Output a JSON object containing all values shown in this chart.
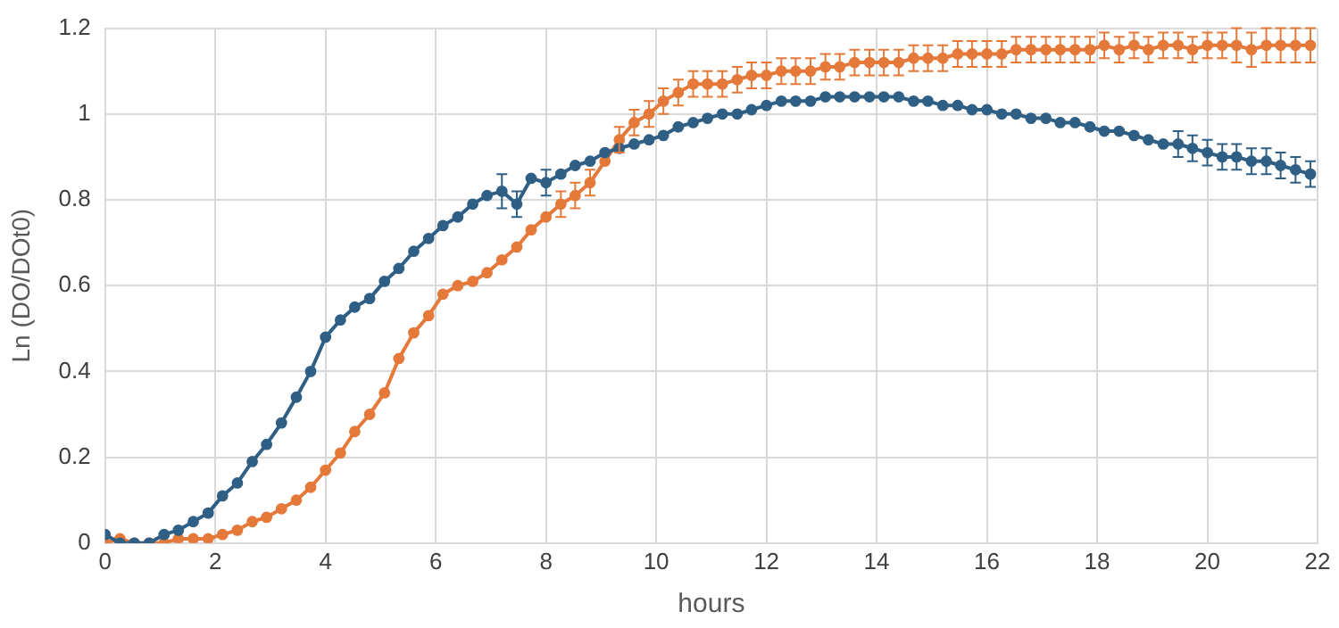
{
  "chart_data": {
    "type": "line",
    "xlabel": "hours",
    "ylabel": "Ln (DO/DOt0)",
    "x": [
      0,
      0.27,
      0.53,
      0.8,
      1.07,
      1.33,
      1.6,
      1.87,
      2.13,
      2.4,
      2.67,
      2.93,
      3.2,
      3.47,
      3.73,
      4,
      4.27,
      4.53,
      4.8,
      5.07,
      5.33,
      5.6,
      5.87,
      6.13,
      6.4,
      6.67,
      6.93,
      7.2,
      7.47,
      7.73,
      8,
      8.27,
      8.53,
      8.8,
      9.07,
      9.33,
      9.6,
      9.87,
      10.13,
      10.4,
      10.67,
      10.93,
      11.2,
      11.47,
      11.73,
      12,
      12.27,
      12.53,
      12.8,
      13.07,
      13.33,
      13.6,
      13.87,
      14.13,
      14.4,
      14.67,
      14.93,
      15.2,
      15.47,
      15.73,
      16,
      16.27,
      16.53,
      16.8,
      17.07,
      17.33,
      17.6,
      17.87,
      18.13,
      18.4,
      18.67,
      18.93,
      19.2,
      19.47,
      19.73,
      20,
      20.27,
      20.53,
      20.8,
      21.07,
      21.33,
      21.6,
      21.87
    ],
    "series": [
      {
        "color": "#2f5f85",
        "values": [
          0.02,
          0,
          0,
          0,
          0.02,
          0.03,
          0.05,
          0.07,
          0.11,
          0.14,
          0.19,
          0.23,
          0.28,
          0.34,
          0.4,
          0.48,
          0.52,
          0.55,
          0.57,
          0.61,
          0.64,
          0.68,
          0.71,
          0.74,
          0.76,
          0.79,
          0.81,
          0.82,
          0.79,
          0.85,
          0.84,
          0.86,
          0.88,
          0.89,
          0.91,
          0.92,
          0.93,
          0.94,
          0.95,
          0.97,
          0.98,
          0.99,
          1.0,
          1.0,
          1.01,
          1.02,
          1.03,
          1.03,
          1.03,
          1.04,
          1.04,
          1.04,
          1.04,
          1.04,
          1.04,
          1.03,
          1.03,
          1.02,
          1.02,
          1.01,
          1.01,
          1.0,
          1.0,
          0.99,
          0.99,
          0.98,
          0.98,
          0.97,
          0.96,
          0.96,
          0.95,
          0.94,
          0.93,
          0.93,
          0.92,
          0.91,
          0.9,
          0.9,
          0.89,
          0.89,
          0.88,
          0.87,
          0.86
        ],
        "errors": [
          null,
          null,
          null,
          null,
          null,
          null,
          null,
          null,
          null,
          null,
          null,
          null,
          null,
          null,
          null,
          null,
          null,
          null,
          null,
          null,
          null,
          null,
          null,
          null,
          null,
          null,
          null,
          0.04,
          0.03,
          null,
          0.03,
          null,
          null,
          null,
          null,
          null,
          null,
          null,
          null,
          null,
          null,
          null,
          null,
          null,
          null,
          null,
          null,
          null,
          null,
          null,
          null,
          null,
          null,
          null,
          null,
          null,
          null,
          null,
          null,
          null,
          null,
          null,
          null,
          null,
          null,
          null,
          null,
          null,
          null,
          null,
          null,
          null,
          null,
          0.03,
          0.03,
          0.03,
          0.03,
          0.03,
          0.03,
          0.03,
          0.03,
          0.03,
          0.03
        ]
      },
      {
        "color": "#e4793a",
        "values": [
          0,
          0.01,
          0,
          0,
          0,
          0.01,
          0.01,
          0.01,
          0.02,
          0.03,
          0.05,
          0.06,
          0.08,
          0.1,
          0.13,
          0.17,
          0.21,
          0.26,
          0.3,
          0.35,
          0.43,
          0.49,
          0.53,
          0.58,
          0.6,
          0.61,
          0.63,
          0.66,
          0.69,
          0.73,
          0.76,
          0.79,
          0.81,
          0.84,
          0.89,
          0.94,
          0.98,
          1.0,
          1.03,
          1.05,
          1.07,
          1.07,
          1.07,
          1.08,
          1.09,
          1.09,
          1.1,
          1.1,
          1.1,
          1.11,
          1.11,
          1.12,
          1.12,
          1.12,
          1.12,
          1.13,
          1.13,
          1.13,
          1.14,
          1.14,
          1.14,
          1.14,
          1.15,
          1.15,
          1.15,
          1.15,
          1.15,
          1.15,
          1.16,
          1.15,
          1.16,
          1.15,
          1.16,
          1.16,
          1.15,
          1.16,
          1.16,
          1.16,
          1.15,
          1.16,
          1.16,
          1.16,
          1.16
        ],
        "errors": [
          null,
          null,
          null,
          null,
          null,
          null,
          null,
          null,
          null,
          null,
          null,
          null,
          null,
          null,
          null,
          null,
          null,
          null,
          null,
          null,
          null,
          null,
          null,
          null,
          null,
          null,
          null,
          null,
          null,
          null,
          null,
          0.03,
          0.03,
          0.03,
          null,
          0.03,
          0.03,
          0.03,
          0.03,
          0.03,
          0.03,
          0.03,
          0.03,
          0.03,
          0.03,
          0.03,
          0.03,
          0.03,
          0.03,
          0.03,
          0.03,
          0.03,
          0.03,
          0.03,
          0.03,
          0.03,
          0.03,
          0.03,
          0.03,
          0.03,
          0.03,
          0.03,
          0.03,
          0.03,
          0.03,
          0.03,
          0.03,
          0.03,
          0.03,
          0.03,
          0.03,
          0.03,
          0.03,
          0.03,
          0.03,
          0.03,
          0.03,
          0.04,
          0.04,
          0.04,
          0.04,
          0.04,
          0.04
        ]
      }
    ],
    "xlim": [
      0,
      22
    ],
    "xticks": [
      0,
      2,
      4,
      6,
      8,
      10,
      12,
      14,
      16,
      18,
      20,
      22
    ],
    "ylim": [
      0,
      1.2
    ],
    "yticks": [
      0,
      0.2,
      0.4,
      0.6,
      0.8,
      1,
      1.2
    ],
    "grid": true,
    "marker": "circle",
    "line_style": "solid"
  }
}
